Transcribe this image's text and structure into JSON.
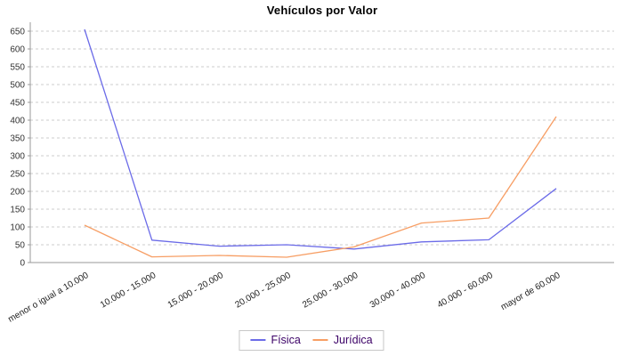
{
  "title": "Vehículos por Valor",
  "chart_data": {
    "type": "line",
    "title": "Vehículos por Valor",
    "categories": [
      "menor o igual a 10.000",
      "10.000 - 15.000",
      "15.000 - 20.000",
      "20.000 - 25.000",
      "25.000 - 30.000",
      "30.000 - 40.000",
      "40.000 - 60.000",
      "mayor de 60.000"
    ],
    "series": [
      {
        "name": "Física",
        "color": "#6B6BE8",
        "values": [
          655,
          63,
          46,
          50,
          38,
          58,
          64,
          208
        ]
      },
      {
        "name": "Jurídica",
        "color": "#F79E64",
        "values": [
          105,
          16,
          20,
          15,
          44,
          111,
          125,
          410
        ]
      }
    ],
    "xlabel": "",
    "ylabel": "",
    "ylim": [
      0,
      650
    ],
    "ytick_step": 50,
    "yticks": [
      0,
      50,
      100,
      150,
      200,
      250,
      300,
      350,
      400,
      450,
      500,
      550,
      600,
      650
    ],
    "grid": true,
    "legend_position": "bottom"
  },
  "colors": {
    "fisica_line": "#6B6BE8",
    "juridica_line": "#F79E64",
    "gridline": "#cccccc",
    "axis": "#999999",
    "legend_text": "#3B0066",
    "title_text": "#000000",
    "background": "#ffffff"
  }
}
